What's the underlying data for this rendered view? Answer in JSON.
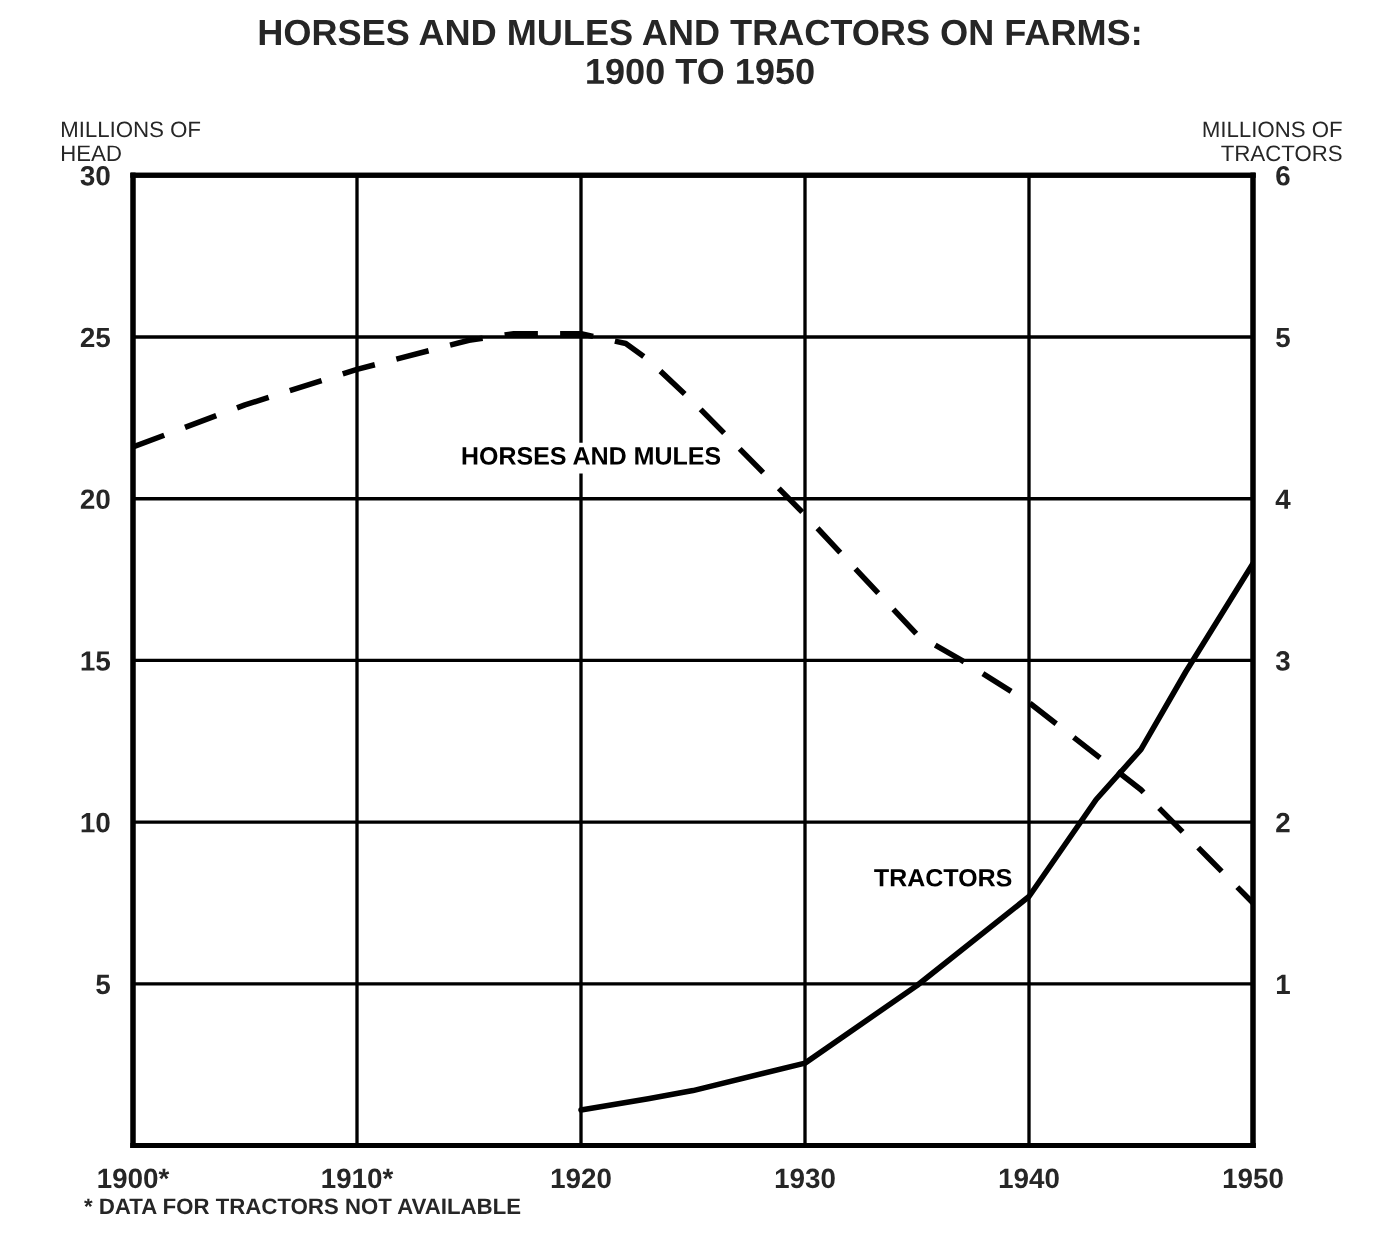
{
  "chart_data": {
    "type": "line",
    "title": "HORSES AND MULES AND TRACTORS ON FARMS:\n1900 TO 1950",
    "ylabel": "MILLIONS OF\nHEAD",
    "y2label": "MILLIONS OF\nTRACTORS",
    "series": [
      {
        "name": "HORSES AND MULES",
        "color": "#000000",
        "line_style": "dashed",
        "x": [
          1900,
          1905,
          1910,
          1915,
          1917,
          1920,
          1922,
          1923,
          1925,
          1927,
          1930,
          1935,
          1937,
          1940,
          1945,
          1948,
          1950
        ],
        "values": [
          21.6,
          22.9,
          24.0,
          24.9,
          25.1,
          25.1,
          24.8,
          24.3,
          23.0,
          21.6,
          19.5,
          15.8,
          15.0,
          13.7,
          11.0,
          8.9,
          7.5
        ]
      },
      {
        "name": "TRACTORS",
        "color": "#000000",
        "line_style": "solid",
        "axis": "y2",
        "x": [
          1920,
          1923,
          1925,
          1930,
          1935,
          1940,
          1943,
          1945,
          1947,
          1950
        ],
        "values": [
          0.22,
          0.29,
          0.34,
          0.51,
          0.99,
          1.54,
          2.14,
          2.45,
          2.93,
          3.6
        ]
      }
    ],
    "xlim": [
      1900,
      1950
    ],
    "xticks": [
      {
        "value": 1900,
        "label": "1900*"
      },
      {
        "value": 1910,
        "label": "1910*"
      },
      1920,
      1930,
      1940,
      1950
    ],
    "ylim": [
      0,
      30
    ],
    "yticks": [
      5,
      10,
      15,
      20,
      25,
      30
    ],
    "y2lim": [
      0,
      6
    ],
    "y2ticks": [
      1,
      2,
      3,
      4,
      5,
      6
    ],
    "grid": true,
    "legend": false,
    "annotations": [
      "* DATA FOR TRACTORS NOT AVAILABLE"
    ]
  }
}
